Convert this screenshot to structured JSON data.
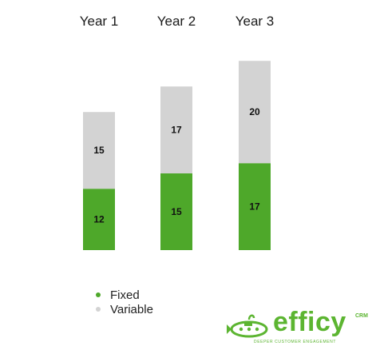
{
  "chart_data": {
    "type": "bar",
    "stacked": true,
    "categories": [
      "Year 1",
      "Year 2",
      "Year 3"
    ],
    "series": [
      {
        "name": "Fixed",
        "color": "#4ea82a",
        "values": [
          12,
          15,
          17
        ]
      },
      {
        "name": "Variable",
        "color": "#d3d3d3",
        "values": [
          15,
          17,
          20
        ]
      }
    ],
    "legend_position": "bottom-left",
    "grid": false
  },
  "logo": {
    "icon": "submarine-icon",
    "text": "efficy",
    "superscript": "CRM",
    "tagline": "DEEPER CUSTOMER ENGAGEMENT"
  }
}
